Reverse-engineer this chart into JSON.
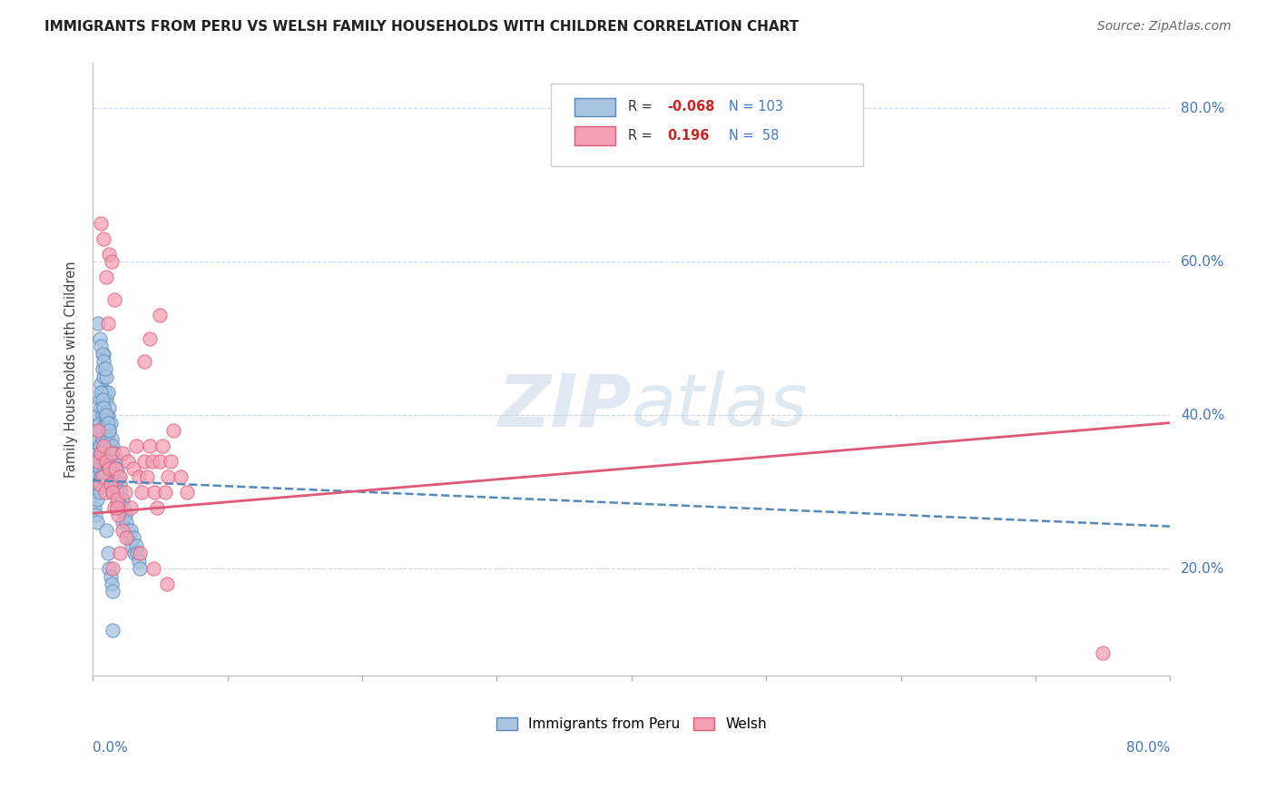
{
  "title": "IMMIGRANTS FROM PERU VS WELSH FAMILY HOUSEHOLDS WITH CHILDREN CORRELATION CHART",
  "source": "Source: ZipAtlas.com",
  "ylabel": "Family Households with Children",
  "legend_peru_r": "-0.068",
  "legend_peru_n": "103",
  "legend_welsh_r": "0.196",
  "legend_welsh_n": "58",
  "xlim": [
    0.0,
    0.8
  ],
  "ylim": [
    0.06,
    0.86
  ],
  "peru_color": "#a8c4e0",
  "welsh_color": "#f4a0b4",
  "peru_line_color": "#5588bb",
  "welsh_line_color": "#e05878",
  "grid_color": "#c8d8e8",
  "peru_trend_x0": 0.0,
  "peru_trend_y0": 0.315,
  "peru_trend_x1": 0.8,
  "peru_trend_y1": 0.255,
  "welsh_trend_x0": 0.0,
  "welsh_trend_y0": 0.272,
  "welsh_trend_x1": 0.8,
  "welsh_trend_y1": 0.39,
  "peru_points_x": [
    0.001,
    0.001,
    0.001,
    0.002,
    0.002,
    0.002,
    0.002,
    0.003,
    0.003,
    0.003,
    0.003,
    0.003,
    0.004,
    0.004,
    0.004,
    0.004,
    0.005,
    0.005,
    0.005,
    0.005,
    0.005,
    0.006,
    0.006,
    0.006,
    0.006,
    0.006,
    0.007,
    0.007,
    0.007,
    0.007,
    0.007,
    0.008,
    0.008,
    0.008,
    0.008,
    0.009,
    0.009,
    0.009,
    0.009,
    0.01,
    0.01,
    0.01,
    0.01,
    0.011,
    0.011,
    0.011,
    0.012,
    0.012,
    0.012,
    0.013,
    0.013,
    0.013,
    0.014,
    0.014,
    0.014,
    0.015,
    0.015,
    0.015,
    0.016,
    0.016,
    0.017,
    0.017,
    0.018,
    0.018,
    0.019,
    0.019,
    0.02,
    0.02,
    0.021,
    0.022,
    0.022,
    0.023,
    0.024,
    0.025,
    0.026,
    0.027,
    0.028,
    0.029,
    0.03,
    0.031,
    0.032,
    0.033,
    0.034,
    0.035,
    0.01,
    0.011,
    0.012,
    0.013,
    0.014,
    0.015,
    0.004,
    0.005,
    0.006,
    0.007,
    0.008,
    0.009,
    0.006,
    0.007,
    0.008,
    0.01,
    0.011,
    0.012,
    0.015
  ],
  "peru_points_y": [
    0.34,
    0.31,
    0.28,
    0.36,
    0.33,
    0.3,
    0.27,
    0.38,
    0.35,
    0.32,
    0.29,
    0.26,
    0.4,
    0.37,
    0.34,
    0.31,
    0.42,
    0.39,
    0.36,
    0.33,
    0.3,
    0.44,
    0.41,
    0.38,
    0.35,
    0.32,
    0.46,
    0.43,
    0.4,
    0.37,
    0.34,
    0.48,
    0.45,
    0.35,
    0.32,
    0.43,
    0.4,
    0.37,
    0.34,
    0.45,
    0.42,
    0.39,
    0.36,
    0.43,
    0.4,
    0.37,
    0.41,
    0.38,
    0.35,
    0.39,
    0.36,
    0.33,
    0.37,
    0.34,
    0.31,
    0.36,
    0.33,
    0.3,
    0.35,
    0.32,
    0.34,
    0.31,
    0.33,
    0.3,
    0.32,
    0.29,
    0.31,
    0.28,
    0.3,
    0.29,
    0.26,
    0.28,
    0.27,
    0.26,
    0.25,
    0.24,
    0.25,
    0.23,
    0.24,
    0.22,
    0.23,
    0.22,
    0.21,
    0.2,
    0.25,
    0.22,
    0.2,
    0.19,
    0.18,
    0.17,
    0.52,
    0.5,
    0.49,
    0.48,
    0.47,
    0.46,
    0.43,
    0.42,
    0.41,
    0.4,
    0.39,
    0.38,
    0.12
  ],
  "welsh_points_x": [
    0.003,
    0.004,
    0.005,
    0.006,
    0.007,
    0.008,
    0.009,
    0.01,
    0.011,
    0.012,
    0.013,
    0.014,
    0.015,
    0.016,
    0.017,
    0.018,
    0.019,
    0.02,
    0.022,
    0.024,
    0.026,
    0.028,
    0.03,
    0.032,
    0.034,
    0.036,
    0.038,
    0.04,
    0.042,
    0.044,
    0.046,
    0.048,
    0.05,
    0.052,
    0.054,
    0.056,
    0.058,
    0.06,
    0.065,
    0.07,
    0.006,
    0.008,
    0.01,
    0.012,
    0.014,
    0.016,
    0.018,
    0.02,
    0.022,
    0.015,
    0.025,
    0.035,
    0.045,
    0.055,
    0.038,
    0.042,
    0.05,
    0.75
  ],
  "welsh_points_y": [
    0.34,
    0.38,
    0.31,
    0.35,
    0.32,
    0.36,
    0.3,
    0.34,
    0.52,
    0.33,
    0.31,
    0.35,
    0.3,
    0.28,
    0.33,
    0.29,
    0.27,
    0.32,
    0.35,
    0.3,
    0.34,
    0.28,
    0.33,
    0.36,
    0.32,
    0.3,
    0.34,
    0.32,
    0.36,
    0.34,
    0.3,
    0.28,
    0.34,
    0.36,
    0.3,
    0.32,
    0.34,
    0.38,
    0.32,
    0.3,
    0.65,
    0.63,
    0.58,
    0.61,
    0.6,
    0.55,
    0.28,
    0.22,
    0.25,
    0.2,
    0.24,
    0.22,
    0.2,
    0.18,
    0.47,
    0.5,
    0.53,
    0.09
  ]
}
